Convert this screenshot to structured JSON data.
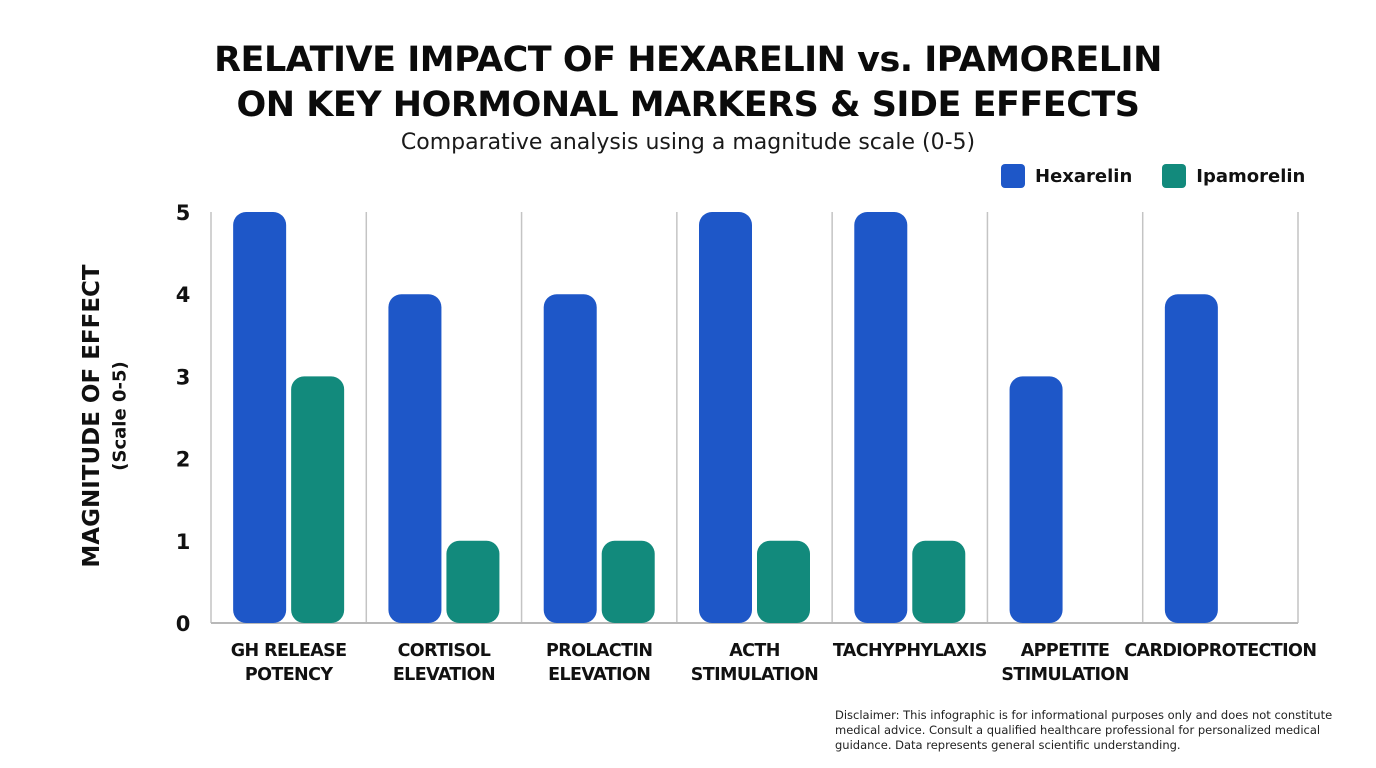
{
  "chart_data": {
    "type": "bar",
    "title_lines": [
      "RELATIVE IMPACT OF HEXARELIN vs. IPAMORELIN",
      "ON KEY HORMONAL MARKERS & SIDE EFFECTS"
    ],
    "subtitle": "Comparative analysis using a magnitude scale (0-5)",
    "ylabel": "MAGNITUDE OF EFFECT",
    "ylabel_sub": "(Scale 0-5)",
    "xlabel": "",
    "ylim": [
      0,
      5
    ],
    "yticks": [
      "0",
      "1",
      "2",
      "3",
      "4",
      "5"
    ],
    "grid": "vertical category separators",
    "legend_position": "top-right",
    "categories": [
      [
        "GH RELEASE",
        "POTENCY"
      ],
      [
        "CORTISOL",
        "ELEVATION"
      ],
      [
        "PROLACTIN",
        "ELEVATION"
      ],
      [
        "ACTH",
        "STIMULATION"
      ],
      [
        "TACHYPHYLAXIS"
      ],
      [
        "APPETITE",
        "STIMULATION"
      ],
      [
        "CARDIOPROTECTION"
      ]
    ],
    "series": [
      {
        "name": "Hexarelin",
        "color": "#1e57c8",
        "values": [
          5,
          4,
          4,
          5,
          5,
          3,
          4
        ]
      },
      {
        "name": "Ipamorelin",
        "color": "#128a7c",
        "values": [
          3,
          1,
          1,
          1,
          1,
          0,
          0
        ]
      }
    ]
  },
  "disclaimer": "Disclaimer: This infographic is for informational purposes only and does not constitute medical advice. Consult a qualified healthcare professional for personalized medical guidance. Data represents general scientific understanding."
}
